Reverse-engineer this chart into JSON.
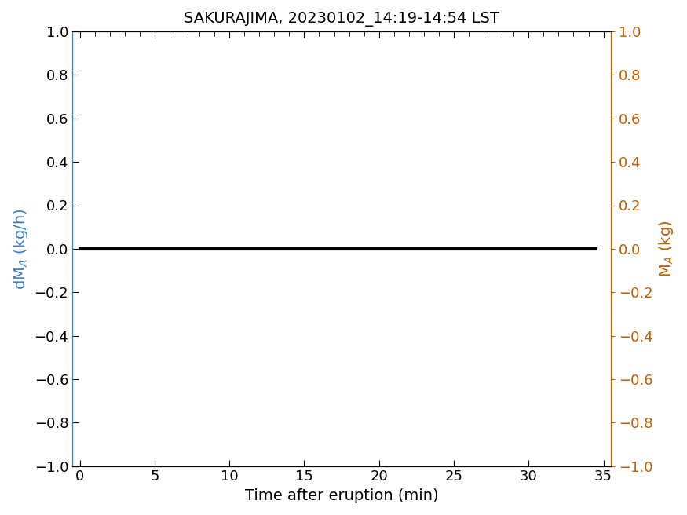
{
  "title": "SAKURAJIMA, 20230102_14:19-14:54 LST",
  "xlabel": "Time after eruption (min)",
  "ylabel_left": "dM$_A$ (kg/h)",
  "ylabel_right": "M$_A$ (kg)",
  "xlim": [
    -0.5,
    35.5
  ],
  "ylim": [
    -1,
    1
  ],
  "xticks": [
    0,
    5,
    10,
    15,
    20,
    25,
    30,
    35
  ],
  "yticks": [
    -1,
    -0.8,
    -0.6,
    -0.4,
    -0.2,
    0,
    0.2,
    0.4,
    0.6,
    0.8,
    1
  ],
  "line_x": [
    0,
    34.5
  ],
  "line_y": [
    0,
    0
  ],
  "line_color": "#000000",
  "line_width": 3.0,
  "left_axis_color": "#3f7fbf",
  "right_axis_color": "#bf5f00",
  "title_fontsize": 14,
  "label_fontsize": 14,
  "tick_fontsize": 13,
  "background_color": "#ffffff"
}
